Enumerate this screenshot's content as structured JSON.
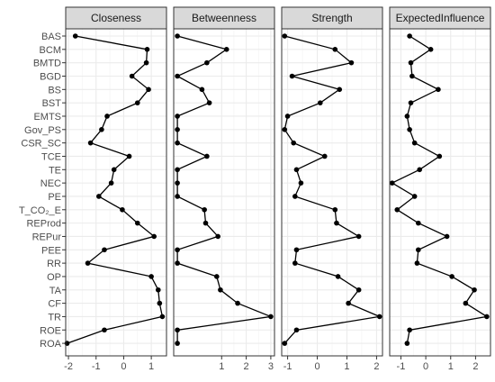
{
  "chart_data": {
    "type": "line",
    "orientation": "horizontal",
    "grid": true,
    "categories": [
      "BAS",
      "BCM",
      "BMTD",
      "BGD",
      "BS",
      "BST",
      "EMTS",
      "Gov_PS",
      "CSR_SC",
      "TCE",
      "TE",
      "NEC",
      "PE",
      "T_CO₂_E",
      "REProd",
      "REPur",
      "PEE",
      "RR",
      "OP",
      "TA",
      "CF",
      "TR",
      "ROE",
      "ROA"
    ],
    "panels": [
      {
        "title": "Closeness",
        "xlim": [
          -2.1,
          1.55
        ],
        "xticks": [
          -2,
          -1,
          0,
          1
        ],
        "values": [
          -1.75,
          0.85,
          0.82,
          0.3,
          0.9,
          0.5,
          -0.6,
          -0.8,
          -1.2,
          0.2,
          -0.35,
          -0.45,
          -0.9,
          -0.05,
          0.5,
          1.1,
          -0.7,
          -1.3,
          1.0,
          1.25,
          1.3,
          1.4,
          -0.7,
          -2.05
        ]
      },
      {
        "title": "Betweenness",
        "xlim": [
          -0.95,
          3.15
        ],
        "xticks": [
          1,
          2,
          3
        ],
        "values": [
          -0.8,
          1.2,
          0.4,
          -0.8,
          0.2,
          0.5,
          -0.8,
          -0.8,
          -0.8,
          0.4,
          -0.8,
          -0.8,
          -0.8,
          0.3,
          0.35,
          0.85,
          -0.8,
          -0.8,
          0.8,
          0.95,
          1.65,
          3.0,
          -0.8,
          -0.8
        ]
      },
      {
        "title": "Strength",
        "xlim": [
          -1.2,
          2.2
        ],
        "xticks": [
          -1,
          0,
          1,
          2
        ],
        "values": [
          -1.1,
          0.6,
          1.15,
          -0.85,
          0.75,
          0.1,
          -1.0,
          -1.1,
          -0.8,
          0.25,
          -0.7,
          -0.55,
          -0.75,
          0.6,
          0.65,
          1.4,
          -0.7,
          -0.75,
          0.7,
          1.4,
          1.05,
          2.1,
          -0.7,
          -1.1
        ]
      },
      {
        "title": "ExpectedInfluence",
        "xlim": [
          -1.45,
          2.6
        ],
        "xticks": [
          -1,
          0,
          1,
          2
        ],
        "values": [
          -0.65,
          0.2,
          -0.6,
          -0.55,
          0.5,
          -0.6,
          -0.75,
          -0.65,
          -0.45,
          0.55,
          -0.25,
          -1.35,
          -0.45,
          -1.15,
          -0.3,
          0.85,
          -0.3,
          -0.35,
          1.05,
          1.95,
          1.6,
          2.45,
          -0.65,
          -0.75
        ]
      }
    ]
  }
}
